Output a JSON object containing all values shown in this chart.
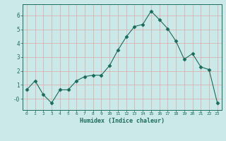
{
  "x": [
    0,
    1,
    2,
    3,
    4,
    5,
    6,
    7,
    8,
    9,
    10,
    11,
    12,
    13,
    14,
    15,
    16,
    17,
    18,
    19,
    20,
    21,
    22,
    23
  ],
  "y": [
    0.65,
    1.3,
    0.3,
    -0.3,
    0.65,
    0.65,
    1.3,
    1.6,
    1.7,
    1.7,
    2.4,
    3.5,
    4.45,
    5.2,
    5.35,
    6.3,
    5.7,
    5.05,
    4.15,
    2.85,
    3.25,
    2.3,
    2.1,
    -0.3
  ],
  "line_color": "#1a6b5a",
  "marker": "D",
  "marker_size": 2.5,
  "bg_color": "#cce9e9",
  "grid_color": "#dba8a8",
  "xlabel": "Humidex (Indice chaleur)",
  "ylim": [
    -0.8,
    6.8
  ],
  "xlim": [
    -0.5,
    23.5
  ],
  "yticks": [
    0,
    1,
    2,
    3,
    4,
    5,
    6
  ],
  "ytick_labels": [
    "-0",
    "1",
    "2",
    "3",
    "4",
    "5",
    "6"
  ],
  "xticks": [
    0,
    1,
    2,
    3,
    4,
    5,
    6,
    7,
    8,
    9,
    10,
    11,
    12,
    13,
    14,
    15,
    16,
    17,
    18,
    19,
    20,
    21,
    22,
    23
  ]
}
